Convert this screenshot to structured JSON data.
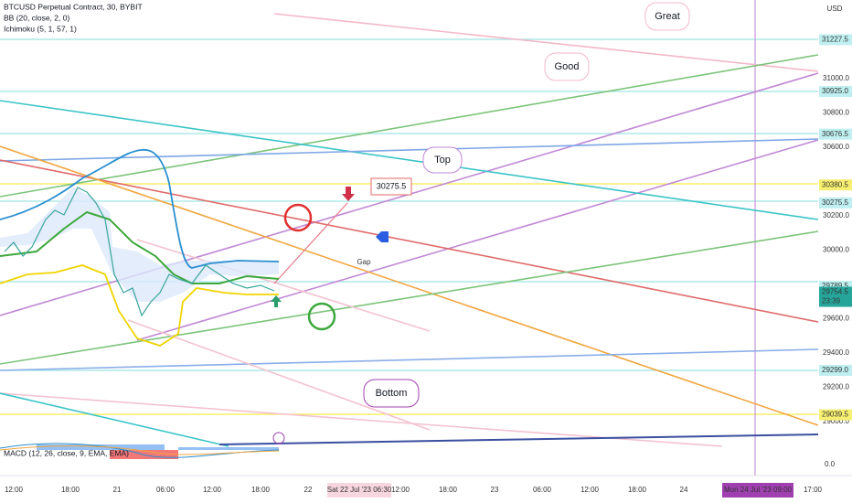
{
  "header": {
    "symbol": "BTCUSD Perpetual Contract, 30, BYBIT",
    "indicators": [
      "BB (20, close, 2, 0)",
      "Ichimoku (5, 1, 57, 1)"
    ],
    "currency": "USD"
  },
  "price_axis": {
    "ticks": [
      "31000.0",
      "30800.0",
      "30600.0",
      "30200.0",
      "30000.0",
      "29600.0",
      "29400.0",
      "29200.0",
      "29000.0"
    ],
    "levels": [
      "31227.5",
      "30925.0",
      "30676.5",
      "30380.5",
      "30275.5",
      "29789.5",
      "29299.0",
      "29039.5"
    ],
    "last_price": "29754.5",
    "countdown": "23:39"
  },
  "time_axis": {
    "labels": [
      "12:00",
      "18:00",
      "21",
      "06:00",
      "12:00",
      "18:00",
      "22",
      "12:00",
      "18:00",
      "23",
      "06:00",
      "12:00",
      "18:00",
      "24",
      "17:00"
    ],
    "cursor_start": "Sat 22 Jul '23   06:30",
    "cursor_end": "Mon 24 Jul '23   09:00"
  },
  "annotations": {
    "great": "Great",
    "good": "Good",
    "top": "Top",
    "bottom": "Bottom",
    "target": "30275.5",
    "gap": "Gap"
  },
  "macd": {
    "label": "MACD (12, 26, close, 9, EMA, EMA)",
    "zero": "0.0"
  }
}
